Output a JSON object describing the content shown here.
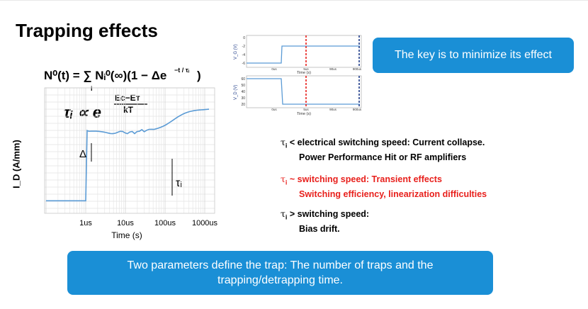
{
  "slide": {
    "title": "Trapping effects",
    "key_callout": "The key is to minimize its effect",
    "bottom_callout": "Two parameters define the trap: The number of traps and the trapping/detrapping time."
  },
  "formulas": {
    "sum_lhs": "N⁰(t) = ∑ Nᵢ⁰(∞)(1 − Δe",
    "sum_exp": "−t / τᵢ",
    "sum_close": ")",
    "sum_index": "i",
    "tau_rel": "τᵢ ∝ e",
    "exp_num": "Eᴄ−Eᴛ",
    "exp_den": "kT"
  },
  "main_plot": {
    "ylabel": "I_D (A/mm)",
    "xlabel": "Time (s)",
    "delta_label": "Δ",
    "tau_label": "τᵢ",
    "trace_color": "#5b9bd5"
  },
  "inset": {
    "ylabel_top": "V_G (V)",
    "ylabel_bottom": "V_D (V)",
    "xlabel": "Time (s)",
    "marker_red": "#e8201c",
    "marker_blue": "#1f3c88"
  },
  "chart_data": [
    {
      "type": "line",
      "title": "",
      "xlabel": "Time (s)",
      "ylabel": "I_D (A/mm)",
      "x_scale": "log",
      "x_tick_labels": [
        "1us",
        "10us",
        "100us",
        "1000us"
      ],
      "grid": true,
      "series": [
        {
          "x": [
            "0.1us",
            "1us",
            "1.1us",
            "10us",
            "100us",
            "200us",
            "1000us"
          ],
          "y_relative": [
            0.1,
            0.1,
            0.66,
            0.64,
            0.67,
            0.81,
            0.83
          ]
        }
      ]
    },
    {
      "type": "line",
      "title": "",
      "xlabel": "Time (s)",
      "ylabel": "V_G (V)",
      "y_tick_labels": [
        "0",
        "-2",
        "-4",
        "-6"
      ],
      "x_tick_labels": [
        "0us",
        "5us",
        "90us",
        "900us"
      ],
      "series": [
        {
          "x": [
            "0us",
            "0us",
            "900us"
          ],
          "y": [
            -6,
            -2,
            -2
          ]
        }
      ]
    },
    {
      "type": "line",
      "title": "",
      "xlabel": "Time (s)",
      "ylabel": "V_D (V)",
      "y_tick_labels": [
        "60",
        "50",
        "40",
        "30",
        "20"
      ],
      "x_tick_labels": [
        "0us",
        "5us",
        "90us",
        "900us"
      ],
      "series": [
        {
          "x": [
            "0us",
            "0us",
            "900us"
          ],
          "y": [
            60,
            20,
            20
          ]
        }
      ]
    }
  ],
  "bullets": [
    {
      "sym": "τ",
      "sub": "i",
      "line1": " < electrical switching speed:  Current collapse.",
      "line2": "Power Performance Hit or RF amplifiers"
    },
    {
      "sym": "τ",
      "sub": "i",
      "line1": " ~ switching speed: Transient effects",
      "line2": "Switching efficiency,  linearization difficulties"
    },
    {
      "sym": "τ",
      "sub": "i",
      "line1": " > switching speed:",
      "line2": "Bias drift."
    }
  ]
}
